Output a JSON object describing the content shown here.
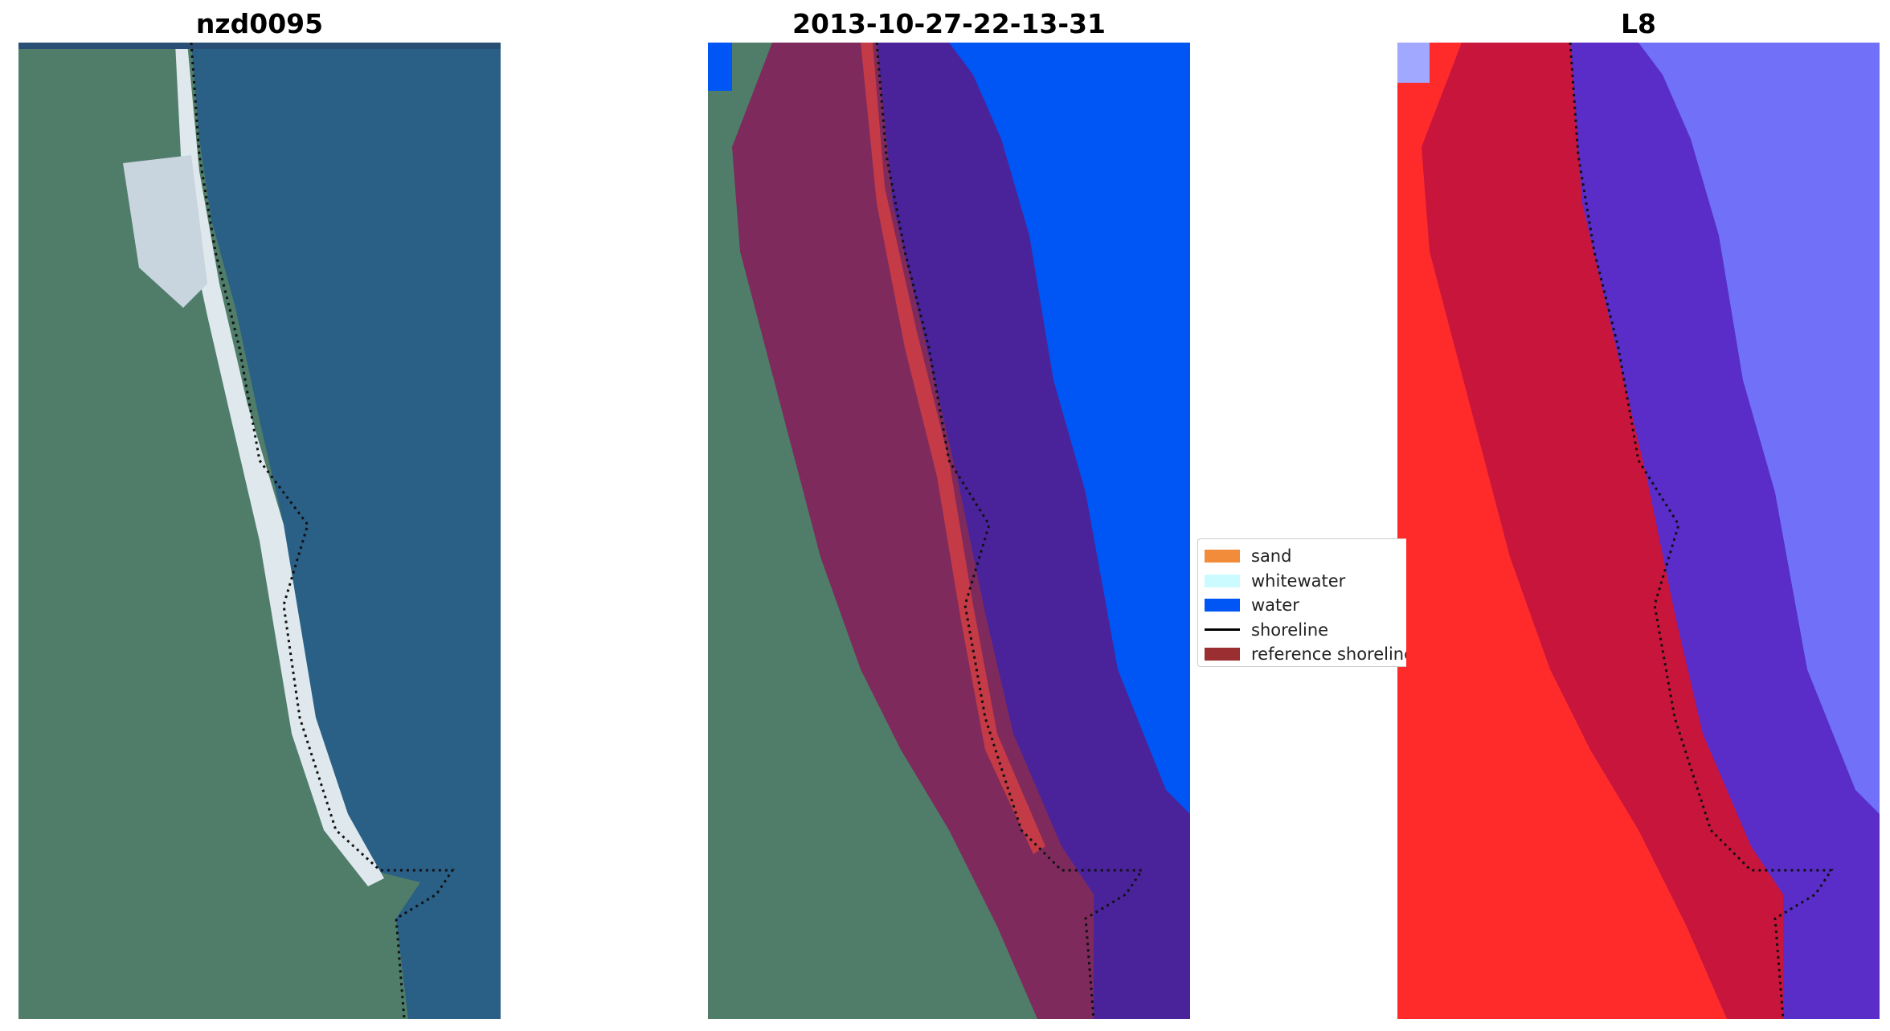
{
  "panels": [
    {
      "title": "nzd0095"
    },
    {
      "title": "2013-10-27-22-13-31"
    },
    {
      "title": "L8"
    }
  ],
  "legend": {
    "items": [
      {
        "label": "sand",
        "color": "#f28b3a",
        "kind": "patch"
      },
      {
        "label": "whitewater",
        "color": "#ccfbff",
        "kind": "patch"
      },
      {
        "label": "water",
        "color": "#0056f5",
        "kind": "patch"
      },
      {
        "label": "shoreline",
        "color": "#000000",
        "kind": "line"
      },
      {
        "label": "reference shoreline buffer",
        "color": "#9a2e30",
        "kind": "patch"
      }
    ]
  },
  "colors": {
    "land": "#4f7d6a",
    "sea": "#2a5f86",
    "beach": "#e4ecef",
    "buffer": "#7e2a5c",
    "water_class": "#0056f5",
    "buffered_water": "#4a239a",
    "l8_land": "#ff2b2b",
    "l8_buffer": "#c8153c",
    "l8_water": "#5a2cc8",
    "l8_sea": "#7070f8"
  }
}
